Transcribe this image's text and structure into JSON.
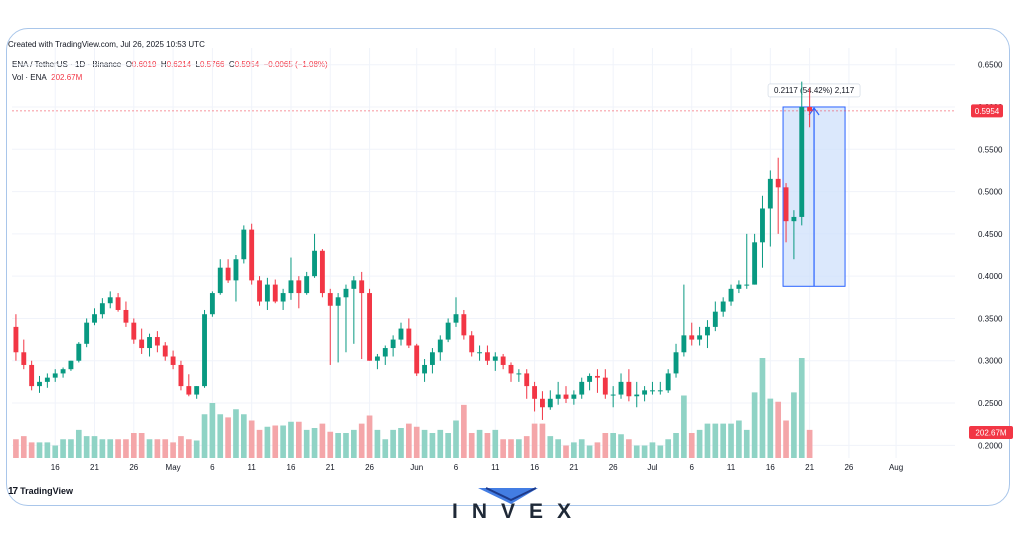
{
  "header": {
    "created": "Created with TradingView.com, Jul 26, 2025 10:53 UTC",
    "symbol": "ENA / TetherUS · 1D · Binance",
    "o_label": "O",
    "o": "0.6019",
    "h_label": "H",
    "h": "0.6214",
    "l_label": "L",
    "l": "0.5766",
    "c_label": "C",
    "c": "0.5954",
    "change": "−0.0065 (−1.08%)",
    "vol_label": "Vol · ENA",
    "vol": "202.67M"
  },
  "badges": {
    "price": "0.5954",
    "volume": "202.67M"
  },
  "measure": {
    "label": "0.2117 (54.42%) 2,117"
  },
  "footer": {
    "logo": "TradingView",
    "watermark": "INVEX"
  },
  "colors": {
    "up": "#089981",
    "down": "#f23645",
    "vol_up": "#8fd3c5",
    "vol_down": "#f4a6a9",
    "measure_fill": "#cfe0fb",
    "measure_stroke": "#2962ff"
  },
  "chart_data": {
    "type": "candlestick",
    "title": "ENA / TetherUS · 1D · Binance",
    "x_tick_labels": [
      "16",
      "21",
      "26",
      "May",
      "6",
      "11",
      "16",
      "21",
      "26",
      "Jun",
      "6",
      "11",
      "16",
      "21",
      "26",
      "Jul",
      "6",
      "11",
      "16",
      "21",
      "26",
      "Aug"
    ],
    "y_tick_labels": [
      "0.6500",
      "0.6000",
      "0.5500",
      "0.5000",
      "0.4500",
      "0.4000",
      "0.3500",
      "0.3000",
      "0.2500",
      "0.2000"
    ],
    "ylim": [
      0.185,
      0.665
    ],
    "start_date": "2025-04-11",
    "end_date": "2025-07-26",
    "grid": true,
    "open": [
      0.34,
      0.31,
      0.295,
      0.27,
      0.275,
      0.28,
      0.285,
      0.29,
      0.3,
      0.32,
      0.345,
      0.355,
      0.368,
      0.375,
      0.36,
      0.345,
      0.325,
      0.315,
      0.328,
      0.318,
      0.305,
      0.295,
      0.27,
      0.26,
      0.27,
      0.355,
      0.38,
      0.41,
      0.395,
      0.42,
      0.455,
      0.395,
      0.37,
      0.39,
      0.37,
      0.38,
      0.395,
      0.38,
      0.4,
      0.43,
      0.38,
      0.365,
      0.375,
      0.385,
      0.395,
      0.38,
      0.3,
      0.305,
      0.315,
      0.325,
      0.338,
      0.318,
      0.285,
      0.295,
      0.31,
      0.325,
      0.345,
      0.355,
      0.33,
      0.31,
      0.31,
      0.3,
      0.305,
      0.295,
      0.285,
      0.285,
      0.27,
      0.255,
      0.245,
      0.255,
      0.26,
      0.255,
      0.26,
      0.275,
      0.282,
      0.28,
      0.26,
      0.26,
      0.275,
      0.258,
      0.26,
      0.265,
      0.265,
      0.265,
      0.285,
      0.31,
      0.33,
      0.325,
      0.33,
      0.34,
      0.358,
      0.37,
      0.385,
      0.39,
      0.39,
      0.44,
      0.48,
      0.515,
      0.505,
      0.465,
      0.47,
      0.6
    ],
    "high": [
      0.355,
      0.325,
      0.3,
      0.282,
      0.285,
      0.29,
      0.292,
      0.3,
      0.322,
      0.35,
      0.362,
      0.374,
      0.382,
      0.38,
      0.37,
      0.35,
      0.338,
      0.332,
      0.335,
      0.322,
      0.312,
      0.3,
      0.284,
      0.27,
      0.36,
      0.382,
      0.42,
      0.42,
      0.425,
      0.46,
      0.462,
      0.4,
      0.398,
      0.396,
      0.385,
      0.422,
      0.4,
      0.405,
      0.45,
      0.432,
      0.385,
      0.38,
      0.39,
      0.4,
      0.405,
      0.385,
      0.308,
      0.318,
      0.33,
      0.345,
      0.35,
      0.32,
      0.302,
      0.315,
      0.33,
      0.35,
      0.375,
      0.36,
      0.335,
      0.318,
      0.318,
      0.31,
      0.308,
      0.298,
      0.29,
      0.29,
      0.275,
      0.264,
      0.265,
      0.275,
      0.27,
      0.265,
      0.28,
      0.285,
      0.29,
      0.29,
      0.27,
      0.285,
      0.29,
      0.275,
      0.27,
      0.275,
      0.275,
      0.29,
      0.32,
      0.39,
      0.345,
      0.34,
      0.348,
      0.37,
      0.375,
      0.39,
      0.395,
      0.45,
      0.45,
      0.495,
      0.525,
      0.54,
      0.51,
      0.478,
      0.63,
      0.622
    ],
    "low": [
      0.3,
      0.29,
      0.265,
      0.262,
      0.268,
      0.275,
      0.28,
      0.288,
      0.298,
      0.316,
      0.342,
      0.35,
      0.362,
      0.358,
      0.34,
      0.32,
      0.308,
      0.305,
      0.31,
      0.3,
      0.29,
      0.265,
      0.258,
      0.255,
      0.268,
      0.352,
      0.378,
      0.392,
      0.37,
      0.415,
      0.39,
      0.365,
      0.36,
      0.368,
      0.36,
      0.372,
      0.362,
      0.378,
      0.398,
      0.375,
      0.295,
      0.298,
      0.31,
      0.32,
      0.302,
      0.3,
      0.29,
      0.295,
      0.305,
      0.318,
      0.315,
      0.282,
      0.275,
      0.285,
      0.3,
      0.322,
      0.34,
      0.325,
      0.305,
      0.3,
      0.295,
      0.288,
      0.29,
      0.275,
      0.275,
      0.255,
      0.24,
      0.23,
      0.242,
      0.248,
      0.25,
      0.248,
      0.255,
      0.265,
      0.262,
      0.255,
      0.245,
      0.255,
      0.252,
      0.245,
      0.252,
      0.26,
      0.26,
      0.262,
      0.28,
      0.305,
      0.318,
      0.318,
      0.315,
      0.335,
      0.352,
      0.365,
      0.38,
      0.385,
      0.39,
      0.41,
      0.435,
      0.45,
      0.44,
      0.42,
      0.46,
      0.576
    ],
    "close": [
      0.31,
      0.295,
      0.27,
      0.275,
      0.28,
      0.285,
      0.29,
      0.3,
      0.32,
      0.345,
      0.355,
      0.368,
      0.375,
      0.36,
      0.345,
      0.325,
      0.315,
      0.328,
      0.318,
      0.305,
      0.295,
      0.27,
      0.26,
      0.27,
      0.355,
      0.38,
      0.41,
      0.395,
      0.42,
      0.455,
      0.395,
      0.37,
      0.39,
      0.37,
      0.38,
      0.395,
      0.38,
      0.4,
      0.43,
      0.38,
      0.365,
      0.375,
      0.385,
      0.395,
      0.38,
      0.3,
      0.305,
      0.315,
      0.325,
      0.338,
      0.318,
      0.285,
      0.295,
      0.31,
      0.325,
      0.345,
      0.355,
      0.33,
      0.31,
      0.31,
      0.3,
      0.305,
      0.295,
      0.285,
      0.285,
      0.27,
      0.255,
      0.245,
      0.255,
      0.26,
      0.255,
      0.26,
      0.275,
      0.282,
      0.28,
      0.26,
      0.26,
      0.275,
      0.258,
      0.26,
      0.265,
      0.265,
      0.265,
      0.285,
      0.31,
      0.33,
      0.325,
      0.33,
      0.34,
      0.358,
      0.37,
      0.385,
      0.39,
      0.39,
      0.44,
      0.48,
      0.515,
      0.505,
      0.465,
      0.47,
      0.6,
      0.595
    ],
    "volume_relative": [
      0.3,
      0.35,
      0.25,
      0.25,
      0.25,
      0.2,
      0.3,
      0.3,
      0.45,
      0.35,
      0.35,
      0.3,
      0.3,
      0.3,
      0.3,
      0.4,
      0.4,
      0.3,
      0.3,
      0.3,
      0.25,
      0.35,
      0.3,
      0.28,
      0.7,
      0.88,
      0.7,
      0.65,
      0.78,
      0.7,
      0.6,
      0.45,
      0.5,
      0.52,
      0.52,
      0.58,
      0.58,
      0.45,
      0.48,
      0.55,
      0.42,
      0.4,
      0.4,
      0.45,
      0.55,
      0.68,
      0.45,
      0.3,
      0.45,
      0.48,
      0.55,
      0.5,
      0.45,
      0.4,
      0.45,
      0.4,
      0.6,
      0.85,
      0.4,
      0.45,
      0.4,
      0.45,
      0.3,
      0.3,
      0.3,
      0.35,
      0.55,
      0.55,
      0.35,
      0.3,
      0.2,
      0.25,
      0.3,
      0.2,
      0.25,
      0.4,
      0.4,
      0.38,
      0.3,
      0.2,
      0.2,
      0.25,
      0.2,
      0.3,
      0.4,
      1.0,
      0.4,
      0.45,
      0.55,
      0.55,
      0.55,
      0.55,
      0.6,
      0.45,
      1.05,
      1.6,
      0.95,
      0.9,
      0.6,
      1.05,
      1.6,
      0.45
    ],
    "measure": {
      "from_price": 0.388,
      "to_price": 0.6,
      "from_date": "2025-07-18",
      "to_date": "2025-07-25"
    },
    "last_price": 0.5954
  }
}
